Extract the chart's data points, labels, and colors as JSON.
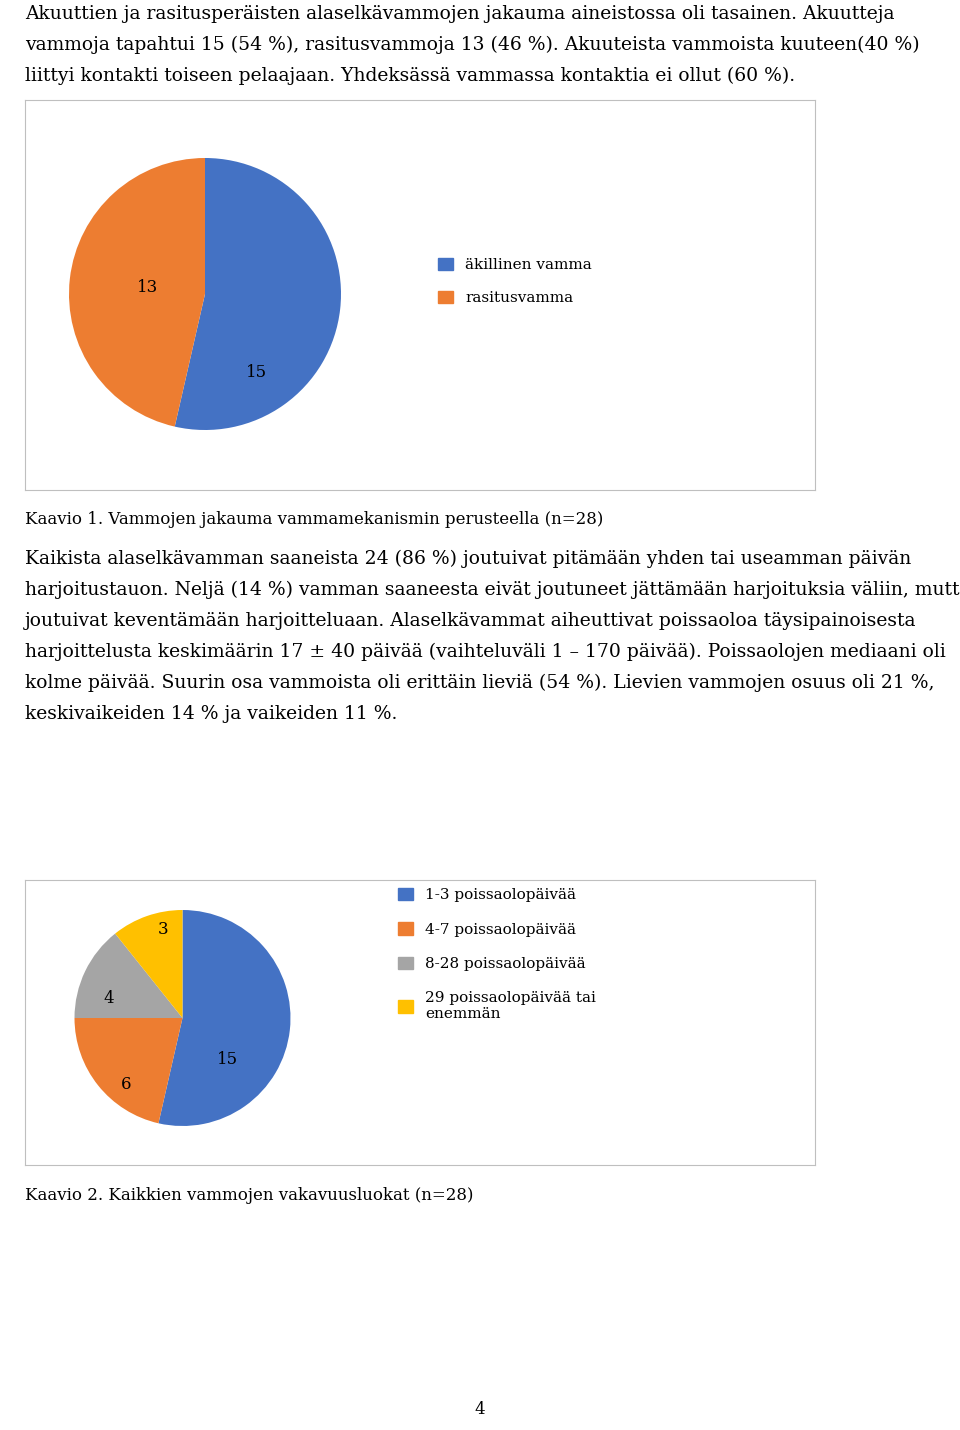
{
  "page_text_top": "Akuuttien ja rasitusperäisten alaselkävammojen jakauma aineistossa oli tasainen. Akuutteja\nvammoja tapahtui 15 (54 %), rasitusvammoja 13 (46 %). Akuuteista vammoista kuuteen(40 %)\nliittyi kontakti toiseen pelaajaan. Yhdeksässä vammassa kontaktia ei ollut (60 %).",
  "chart1_values": [
    15,
    13
  ],
  "chart1_colors": [
    "#4472C4",
    "#ED7D31"
  ],
  "chart1_legend": [
    "äkillinen vamma",
    "rasitusvamma"
  ],
  "chart1_startangle": 90,
  "kaavio1_text": "Kaavio 1. Vammojen jakauma vammamekanismin perusteella (n=28)",
  "middle_text": "Kaikista alaselkävamman saaneista 24 (86 %) joutuivat pitämään yhden tai useamman päivän\nharjoitustauon. Neljä (14 %) vamman saaneesta eivät joutuneet jättämään harjoituksia väliin, mutta\njoutuivat keventämään harjoitteluaan. Alaselkävammat aiheuttivat poissaoloa täysipainoisesta\nharjoittelusta keskimäärin 17 ± 40 päivää (vaihteluväli 1 – 170 päivää). Poissaolojen mediaani oli\nkolme päivää. Suurin osa vammoista oli erittäin lieviä (54 %). Lievien vammojen osuus oli 21 %,\nkeskivaikeiden 14 % ja vaikeiden 11 %.",
  "chart2_values": [
    15,
    6,
    4,
    3
  ],
  "chart2_colors": [
    "#4472C4",
    "#ED7D31",
    "#A5A5A5",
    "#FFC000"
  ],
  "chart2_legend": [
    "1-3 poissaolopäivää",
    "4-7 poissaolopäivää",
    "8-28 poissaolopäivää",
    "29 poissaolopäivää tai\nenemmän"
  ],
  "chart2_startangle": 90,
  "kaavio2_text": "Kaavio 2. Kaikkien vammojen vakavuusluokat (n=28)",
  "page_number": "4",
  "bg_color": "#FFFFFF",
  "box_edge": "#BFBFBF",
  "text_color": "#000000",
  "body_fontsize": 13.5,
  "label_fontsize": 12,
  "legend_fontsize": 11,
  "kaavio_fontsize": 12
}
